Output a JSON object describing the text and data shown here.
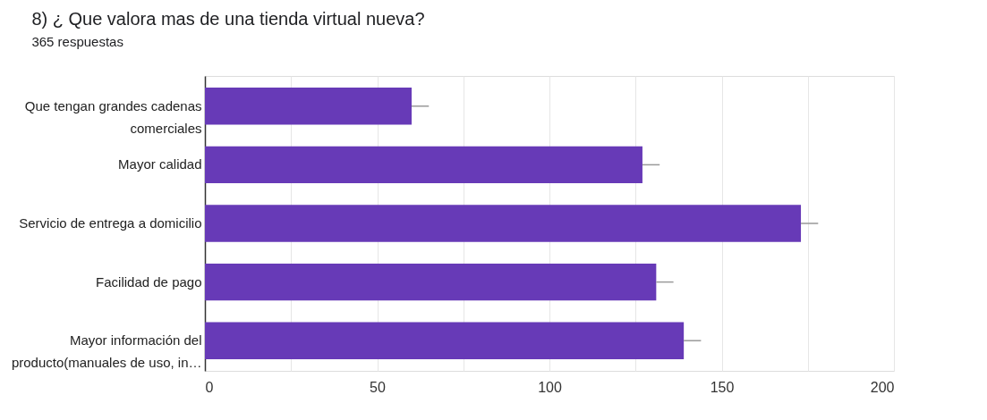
{
  "chart_data": {
    "type": "bar",
    "orientation": "horizontal",
    "title": "8) ¿ Que valora mas de una tienda virtual nueva?",
    "subtitle": "365 respuestas",
    "categories": [
      "Que tengan grandes cadenas comerciales",
      "Mayor calidad",
      "Servicio de entrega a domicilio",
      "Facilidad de pago",
      "Mayor información del producto(manuales de uso, in…"
    ],
    "values": [
      60,
      127,
      173,
      131,
      139
    ],
    "errors": [
      [
        60,
        65
      ],
      [
        127,
        132
      ],
      [
        173,
        178
      ],
      [
        131,
        136
      ],
      [
        139,
        144
      ]
    ],
    "color": "#673ab7",
    "xlim": [
      0,
      200
    ],
    "xticks": [
      0,
      {
        "value": 25,
        "label": null
      },
      50,
      {
        "value": 75,
        "label": null
      },
      100,
      {
        "value": 125,
        "label": null
      },
      150,
      {
        "value": 175,
        "label": null
      },
      200
    ],
    "grid": "x"
  }
}
